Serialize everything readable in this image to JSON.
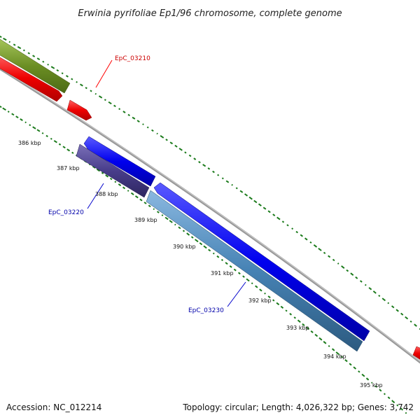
{
  "title": "Erwinia pyrifoliae Ep1/96 chromosome, complete genome",
  "footer": {
    "accession": "Accession: NC_012214",
    "summary": "Topology: circular; Length: 4,026,322 bp; Genes: 3,742"
  },
  "ticks": [
    "386 kbp",
    "387 kbp",
    "388 kbp",
    "389 kbp",
    "390 kbp",
    "391 kbp",
    "392 kbp",
    "393 kbp",
    "394 kbp",
    "395 kbp"
  ],
  "genes": [
    {
      "name": "EpC_03210",
      "strand": "plus",
      "color": "#ff0000"
    },
    {
      "name": "EpC_03220",
      "strand": "minus",
      "color": "#483d8b"
    },
    {
      "name": "EpC_03230",
      "strand": "minus",
      "color": "#4682b4"
    }
  ],
  "colors": {
    "backbone": "#888888",
    "forward_cds": "#ff0000",
    "reverse_cds": "#0000ff",
    "upper_feature": "#6b8e23",
    "gc_dots": "#1a7a1a",
    "plus_label": "#cc0000",
    "minus_label": "#0000aa"
  }
}
